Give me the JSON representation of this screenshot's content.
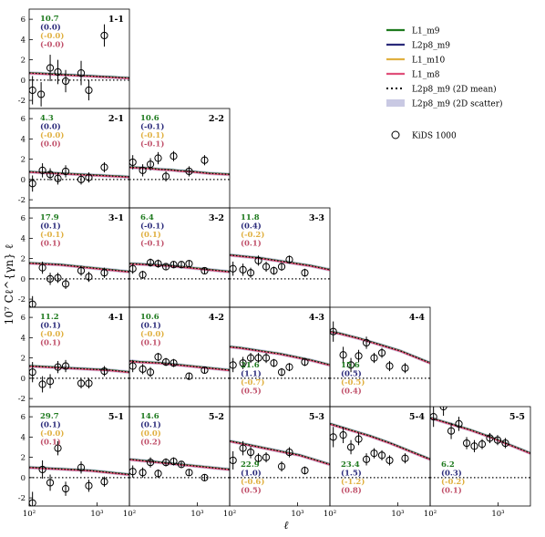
{
  "chart_data": {
    "type": "scatter",
    "ylabel": "10⁷ Cℓ^{γn} ℓ",
    "xlabel": "ℓ",
    "x_scale": "log",
    "xlim": [
      100,
      3000
    ],
    "ylim": [
      -2.8,
      7.0
    ],
    "y_ticks": [
      -2,
      0,
      2,
      4,
      6
    ],
    "x_tick_labels": [
      "10²",
      "10³"
    ],
    "legend": {
      "position": "top-right",
      "entries": [
        {
          "label": "L1_m9",
          "color": "#1e7a1e",
          "style": "line"
        },
        {
          "label": "L2p8_m9",
          "color": "#2a2a7a",
          "style": "line"
        },
        {
          "label": "L1_m10",
          "color": "#e0b040",
          "style": "line"
        },
        {
          "label": "L1_m8",
          "color": "#e0507a",
          "style": "line"
        },
        {
          "label": "L2p8_m9 (2D mean)",
          "color": "#000000",
          "style": "dotted"
        },
        {
          "label": "L2p8_m9 (2D scatter)",
          "color": "#c9c9e3",
          "style": "band"
        },
        {
          "label": "KiDS 1000",
          "color": "#000000",
          "style": "circle"
        }
      ]
    },
    "stat_colors": [
      "#1e7a1e",
      "#2a2a7a",
      "#e0b040",
      "#c0506a"
    ],
    "x": [
      121,
      157,
      204,
      265,
      345,
      448,
      583,
      757,
      985,
      1281
    ],
    "panels": [
      {
        "id": "1-1",
        "row": 1,
        "col": 1,
        "stats": [
          "10.7",
          "(0.0)",
          "(-0.0)",
          "(-0.0)"
        ],
        "model": [
          0.7,
          0.65,
          0.6,
          0.55,
          0.5,
          0.45,
          0.4,
          0.35,
          0.3,
          0.25,
          0.2
        ],
        "x": [
          112,
          150,
          204,
          265,
          345,
          583,
          757,
          1281
        ],
        "y": [
          -1.0,
          -1.4,
          1.2,
          0.8,
          -0.1,
          0.7,
          -1.0,
          4.4
        ],
        "err": [
          1.4,
          1.2,
          1.3,
          1.2,
          1.1,
          1.2,
          1.0,
          1.1
        ]
      },
      {
        "id": "2-1",
        "row": 2,
        "col": 1,
        "stats": [
          "4.3",
          "(0.0)",
          "(-0.0)",
          "(0.0)"
        ],
        "model": [
          0.75,
          0.7,
          0.65,
          0.6,
          0.55,
          0.5,
          0.45,
          0.4,
          0.35,
          0.3,
          0.25
        ],
        "x": [
          112,
          157,
          204,
          265,
          345,
          583,
          757,
          1281
        ],
        "y": [
          -0.4,
          0.9,
          0.5,
          0.1,
          0.8,
          0.0,
          0.2,
          1.2
        ],
        "err": [
          0.8,
          0.7,
          0.6,
          0.6,
          0.6,
          0.5,
          0.5,
          0.5
        ]
      },
      {
        "id": "2-2",
        "row": 2,
        "col": 2,
        "stats": [
          "10.6",
          "(-0.1)",
          "(-0.1)",
          "(-0.1)"
        ],
        "model": [
          1.2,
          1.15,
          1.1,
          1.0,
          0.95,
          0.85,
          0.8,
          0.7,
          0.6,
          0.55,
          0.5
        ],
        "x": [
          112,
          157,
          204,
          265,
          345,
          448,
          757,
          1281
        ],
        "y": [
          1.7,
          0.9,
          1.5,
          2.1,
          0.3,
          2.3,
          0.8,
          1.9
        ],
        "err": [
          0.7,
          0.6,
          0.6,
          0.6,
          0.5,
          0.5,
          0.5,
          0.5
        ]
      },
      {
        "id": "3-1",
        "row": 3,
        "col": 1,
        "stats": [
          "17.9",
          "(0.1)",
          "(-0.1)",
          "(0.1)"
        ],
        "model": [
          1.55,
          1.5,
          1.45,
          1.4,
          1.3,
          1.2,
          1.1,
          1.0,
          0.9,
          0.8,
          0.7
        ],
        "x": [
          112,
          157,
          204,
          265,
          345,
          583,
          757,
          1281
        ],
        "y": [
          -2.5,
          1.1,
          0.0,
          0.1,
          -0.5,
          0.8,
          0.2,
          0.6
        ],
        "err": [
          0.8,
          0.6,
          0.6,
          0.5,
          0.5,
          0.5,
          0.5,
          0.5
        ]
      },
      {
        "id": "3-2",
        "row": 3,
        "col": 2,
        "stats": [
          "6.4",
          "(-0.1)",
          "(0.1)",
          "(-0.1)"
        ],
        "model": [
          1.5,
          1.45,
          1.4,
          1.35,
          1.3,
          1.2,
          1.1,
          1.0,
          0.9,
          0.8,
          0.7
        ],
        "x": [
          112,
          157,
          204,
          265,
          345,
          448,
          583,
          757,
          1281
        ],
        "y": [
          1.0,
          0.4,
          1.6,
          1.5,
          1.2,
          1.4,
          1.4,
          1.5,
          0.8
        ],
        "err": [
          0.5,
          0.4,
          0.4,
          0.4,
          0.3,
          0.3,
          0.3,
          0.3,
          0.3
        ]
      },
      {
        "id": "3-3",
        "row": 3,
        "col": 3,
        "stats": [
          "11.8",
          "(0.4)",
          "(-0.2)",
          "(0.1)"
        ],
        "model": [
          2.35,
          2.25,
          2.15,
          2.05,
          1.9,
          1.75,
          1.6,
          1.45,
          1.3,
          1.1,
          0.9
        ],
        "x": [
          112,
          157,
          204,
          265,
          345,
          448,
          583,
          757,
          1281
        ],
        "y": [
          1.0,
          0.9,
          0.6,
          1.8,
          1.2,
          0.8,
          1.2,
          1.9,
          0.6
        ],
        "err": [
          0.7,
          0.6,
          0.5,
          0.5,
          0.5,
          0.4,
          0.4,
          0.4,
          0.4
        ]
      },
      {
        "id": "4-1",
        "row": 4,
        "col": 1,
        "stats": [
          "11.2",
          "(0.1)",
          "(-0.0)",
          "(0.1)"
        ],
        "model": [
          1.2,
          1.15,
          1.1,
          1.05,
          1.0,
          0.95,
          0.9,
          0.85,
          0.8,
          0.7,
          0.6
        ],
        "x": [
          112,
          157,
          204,
          265,
          345,
          583,
          757,
          1281
        ],
        "y": [
          0.6,
          -0.6,
          -0.3,
          1.1,
          1.2,
          -0.5,
          -0.5,
          0.7
        ],
        "err": [
          1.0,
          0.8,
          0.7,
          0.6,
          0.6,
          0.5,
          0.5,
          0.5
        ]
      },
      {
        "id": "4-2",
        "row": 4,
        "col": 2,
        "stats": [
          "10.6",
          "(0.1)",
          "(-0.0)",
          "(0.1)"
        ],
        "model": [
          1.7,
          1.6,
          1.55,
          1.5,
          1.4,
          1.3,
          1.2,
          1.1,
          1.0,
          0.9,
          0.8
        ],
        "x": [
          112,
          157,
          204,
          265,
          345,
          448,
          757,
          1281
        ],
        "y": [
          1.2,
          0.9,
          0.6,
          2.1,
          1.6,
          1.5,
          0.2,
          0.8
        ],
        "err": [
          0.6,
          0.5,
          0.5,
          0.4,
          0.4,
          0.4,
          0.3,
          0.3
        ]
      },
      {
        "id": "4-3",
        "row": 4,
        "col": 3,
        "stats": [
          "21.6",
          "(1.1)",
          "(-0.7)",
          "(0.5)"
        ],
        "model": [
          3.1,
          3.0,
          2.85,
          2.7,
          2.55,
          2.4,
          2.2,
          2.0,
          1.8,
          1.55,
          1.3
        ],
        "x": [
          112,
          157,
          204,
          265,
          345,
          448,
          583,
          757,
          1281
        ],
        "y": [
          1.3,
          1.5,
          2.0,
          2.0,
          2.0,
          1.5,
          0.6,
          1.1,
          1.6
        ],
        "err": [
          0.7,
          0.6,
          0.5,
          0.5,
          0.5,
          0.4,
          0.4,
          0.4,
          0.4
        ]
      },
      {
        "id": "4-4",
        "row": 4,
        "col": 4,
        "stats": [
          "15.6",
          "(0.5)",
          "(-0.5)",
          "(0.4)"
        ],
        "model": [
          4.6,
          4.4,
          4.15,
          3.9,
          3.6,
          3.3,
          3.0,
          2.7,
          2.3,
          1.9,
          1.5
        ],
        "x": [
          112,
          157,
          204,
          265,
          345,
          448,
          583,
          757,
          1281
        ],
        "y": [
          4.6,
          2.3,
          1.3,
          2.2,
          3.5,
          2.0,
          2.5,
          1.2,
          1.0
        ],
        "err": [
          1.0,
          0.8,
          0.7,
          0.6,
          0.6,
          0.5,
          0.5,
          0.5,
          0.5
        ]
      },
      {
        "id": "5-1",
        "row": 5,
        "col": 1,
        "stats": [
          "29.7",
          "(0.1)",
          "(-0.0)",
          "(0.1)"
        ],
        "model": [
          1.0,
          0.95,
          0.9,
          0.85,
          0.8,
          0.75,
          0.7,
          0.6,
          0.5,
          0.4,
          0.3
        ],
        "x": [
          112,
          157,
          204,
          265,
          345,
          583,
          757,
          1281
        ],
        "y": [
          -2.5,
          0.8,
          -0.5,
          2.9,
          -1.1,
          1.0,
          -0.8,
          -0.4
        ],
        "err": [
          1.1,
          0.9,
          0.8,
          0.7,
          0.7,
          0.6,
          0.6,
          0.5
        ]
      },
      {
        "id": "5-2",
        "row": 5,
        "col": 2,
        "stats": [
          "14.6",
          "(0.1)",
          "(0.0)",
          "(0.2)"
        ],
        "model": [
          1.8,
          1.7,
          1.6,
          1.5,
          1.4,
          1.3,
          1.2,
          1.1,
          1.0,
          0.9,
          0.8
        ],
        "x": [
          112,
          157,
          204,
          265,
          345,
          448,
          583,
          757,
          1281
        ],
        "y": [
          0.6,
          0.5,
          1.5,
          0.4,
          1.5,
          1.6,
          1.3,
          0.5,
          0.0
        ],
        "err": [
          0.6,
          0.5,
          0.5,
          0.4,
          0.4,
          0.4,
          0.3,
          0.3,
          0.3
        ]
      },
      {
        "id": "5-3",
        "row": 5,
        "col": 3,
        "stats": [
          "22.9",
          "(1.0)",
          "(-0.6)",
          "(0.5)"
        ],
        "model": [
          3.6,
          3.4,
          3.2,
          3.0,
          2.8,
          2.6,
          2.4,
          2.2,
          1.9,
          1.6,
          1.3
        ],
        "x": [
          112,
          157,
          204,
          265,
          345,
          583,
          757,
          1281
        ],
        "y": [
          1.7,
          2.9,
          2.5,
          1.9,
          2.0,
          1.1,
          2.5,
          0.7
        ],
        "err": [
          0.9,
          0.7,
          0.6,
          0.5,
          0.5,
          0.5,
          0.5,
          0.4
        ]
      },
      {
        "id": "5-4",
        "row": 5,
        "col": 4,
        "stats": [
          "23.4",
          "(1.5)",
          "(-1.2)",
          "(0.8)"
        ],
        "model": [
          5.3,
          5.0,
          4.7,
          4.4,
          4.1,
          3.75,
          3.4,
          3.0,
          2.6,
          2.2,
          1.8
        ],
        "x": [
          112,
          157,
          204,
          265,
          345,
          448,
          583,
          757,
          1281
        ],
        "y": [
          4.0,
          4.2,
          3.0,
          3.8,
          1.8,
          2.4,
          2.2,
          1.7,
          1.9
        ],
        "err": [
          1.0,
          0.8,
          0.7,
          0.6,
          0.6,
          0.5,
          0.5,
          0.5,
          0.5
        ]
      },
      {
        "id": "5-5",
        "row": 5,
        "col": 5,
        "stats": [
          "6.2",
          "(0.3)",
          "(-0.2)",
          "(0.1)"
        ],
        "model": [
          5.9,
          5.6,
          5.3,
          5.0,
          4.7,
          4.35,
          4.0,
          3.6,
          3.2,
          2.8,
          2.4
        ],
        "x": [
          112,
          157,
          204,
          265,
          345,
          448,
          583,
          757,
          985,
          1281
        ],
        "y": [
          6.0,
          7.0,
          4.6,
          5.3,
          3.4,
          3.1,
          3.3,
          3.9,
          3.7,
          3.4
        ],
        "err": [
          1.0,
          0.9,
          0.8,
          0.7,
          0.6,
          0.6,
          0.5,
          0.5,
          0.5,
          0.5
        ]
      }
    ]
  }
}
